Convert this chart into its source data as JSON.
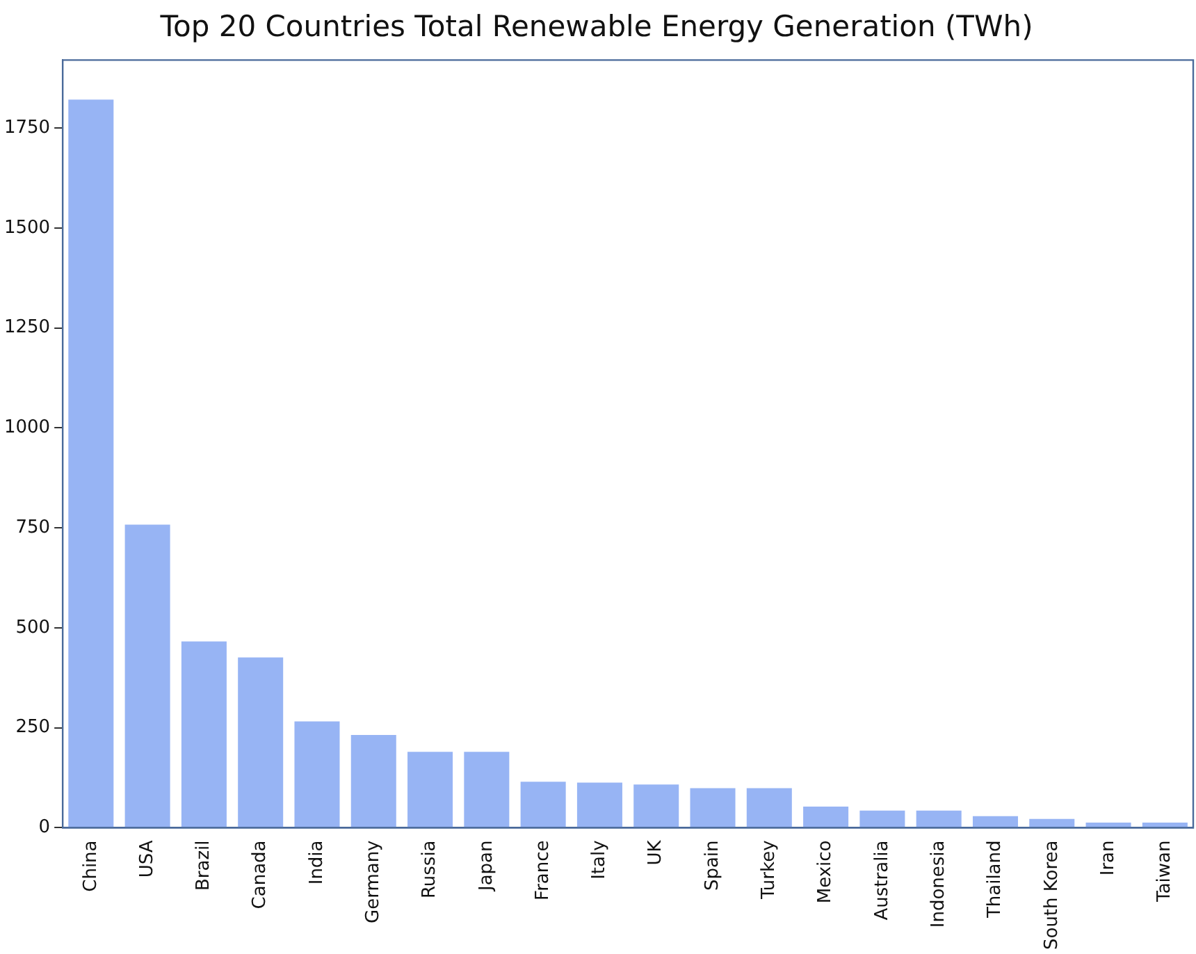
{
  "chart_data": {
    "type": "bar",
    "title": "Top 20 Countries Total Renewable Energy Generation (TWh)",
    "categories": [
      "China",
      "USA",
      "Brazil",
      "Canada",
      "India",
      "Germany",
      "Russia",
      "Japan",
      "France",
      "Italy",
      "UK",
      "Spain",
      "Turkey",
      "Mexico",
      "Australia",
      "Indonesia",
      "Thailand",
      "South Korea",
      "Iran",
      "Taiwan"
    ],
    "values": [
      1821,
      758,
      466,
      426,
      266,
      232,
      190,
      190,
      115,
      113,
      108,
      99,
      99,
      53,
      43,
      43,
      29,
      22,
      13,
      13
    ],
    "color": "#97b4f4",
    "ylim": [
      0,
      1920
    ],
    "yticks": [
      0,
      250,
      500,
      750,
      1000,
      1250,
      1500,
      1750
    ],
    "grid": false,
    "legend": false
  }
}
